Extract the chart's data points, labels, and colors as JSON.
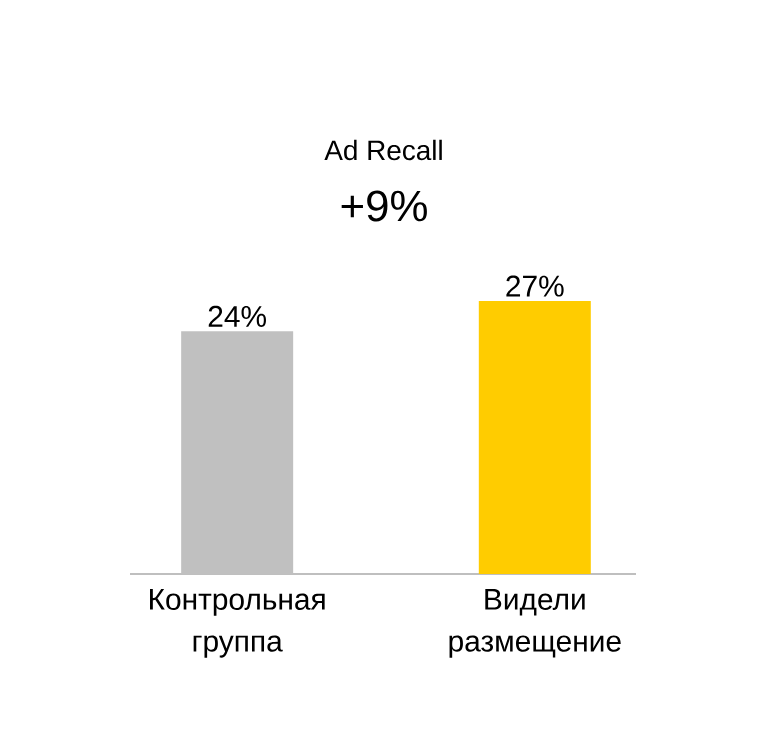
{
  "chart_data": {
    "type": "bar",
    "title": "Ad Recall",
    "annotations": [
      "+9%"
    ],
    "categories": [
      "Контрольная группа",
      "Видели размещение"
    ],
    "values": [
      24,
      27
    ],
    "colors": [
      "#c0c0c0",
      "#ffcc00"
    ],
    "value_labels": [
      "24%",
      "27%"
    ]
  }
}
